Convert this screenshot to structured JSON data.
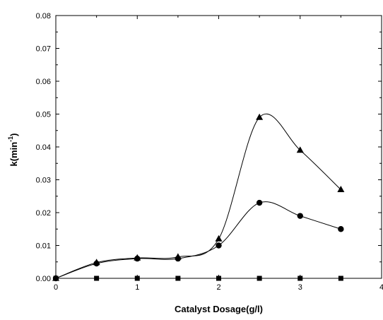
{
  "chart_data": {
    "type": "scatter",
    "xlabel": "Catalyst Dosage(g/l)",
    "ylabel": "k(min",
    "ylabel_sup": "-1",
    "ylabel_close": ")",
    "xlim": [
      0,
      4
    ],
    "ylim": [
      0,
      0.08
    ],
    "x_ticks": [
      "0",
      "1",
      "2",
      "3",
      "4"
    ],
    "y_ticks": [
      "0.00",
      "0.01",
      "0.02",
      "0.03",
      "0.04",
      "0.05",
      "0.06",
      "0.07",
      "0.08"
    ],
    "grid": false,
    "series": [
      {
        "marker": "square",
        "x": [
          0,
          0.5,
          1,
          1.5,
          2,
          2.5,
          3,
          3.5
        ],
        "y": [
          0,
          0,
          0,
          0,
          0,
          0,
          0,
          0
        ]
      },
      {
        "marker": "circle",
        "x": [
          0,
          0.5,
          1,
          1.5,
          2,
          2.5,
          3,
          3.5
        ],
        "y": [
          0,
          0.0045,
          0.006,
          0.006,
          0.01,
          0.023,
          0.019,
          0.015
        ]
      },
      {
        "marker": "triangle",
        "x": [
          0,
          0.5,
          1,
          1.5,
          2,
          2.5,
          3,
          3.5
        ],
        "y": [
          0,
          0.0048,
          0.0062,
          0.0065,
          0.012,
          0.049,
          0.039,
          0.027
        ]
      }
    ]
  }
}
